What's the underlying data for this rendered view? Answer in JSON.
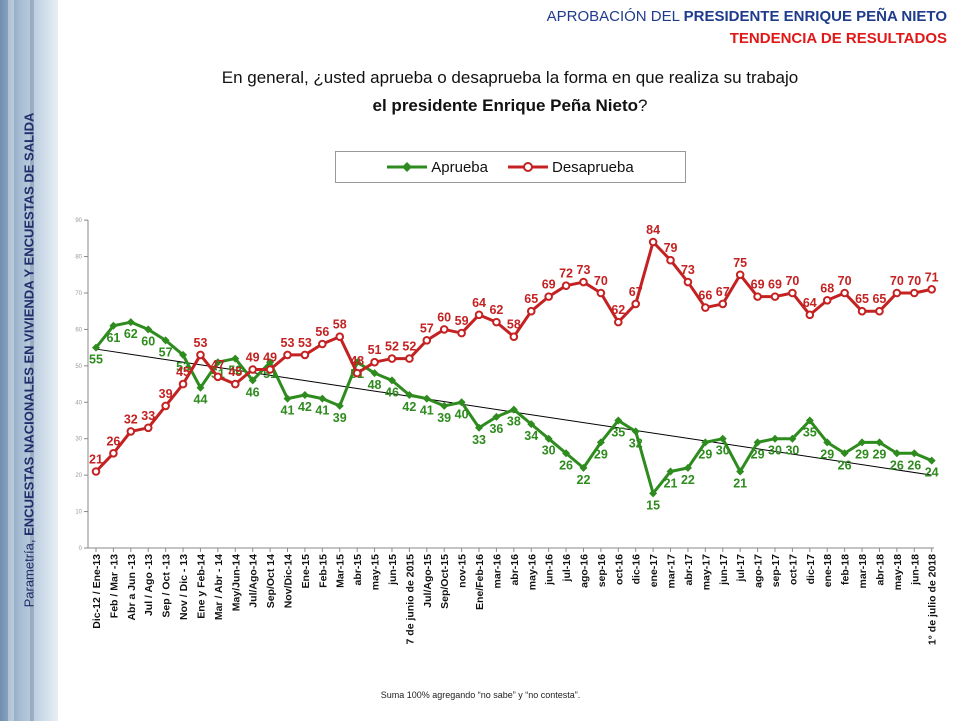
{
  "header": {
    "title_prefix": "APROBACIÓN DEL ",
    "title_bold": "PRESIDENTE ENRIQUE PEÑA NIETO",
    "subtitle": "TENDENCIA DE RESULTADOS"
  },
  "question": {
    "line1": "En general, ¿usted aprueba o desaprueba la forma en que realiza su trabajo",
    "line2_bold": "el presidente Enrique Peña Nieto",
    "line2_end": "?"
  },
  "side": {
    "prefix": "Parametría, ",
    "bold": "ENCUESTAS NACIONALES EN VIVIENDA Y ENCUESTAS DE SALIDA"
  },
  "footnote": "Suma 100%  agregando “no sabe” y “no contesta”.",
  "colors": {
    "aprueba": "#2e8b1e",
    "desaprueba": "#c42222",
    "trend": "#000000"
  },
  "chart_data": {
    "type": "line",
    "ylim": [
      0,
      90
    ],
    "yticks": [
      0,
      10,
      20,
      30,
      40,
      50,
      60,
      70,
      80,
      90
    ],
    "legend_position": "top-center",
    "grid": false,
    "trendline": {
      "series": "Aprueba"
    },
    "categories": [
      "Dic-12 / Ene-13",
      "Feb / Mar -13",
      "Abr a Jun -13",
      "Jul / Ago -13",
      "Sep / Oct -13",
      "Nov / Dic - 13",
      "Ene y Feb-14",
      "Mar / Abr - 14",
      "May/Jun-14",
      "Jul/Ago-14",
      "Sep/Oct 14",
      "Nov/Dic-14",
      "Ene-15",
      "Feb-15",
      "Mar-15",
      "abr-15",
      "may-15",
      "jun-15",
      "7 de junio de 2015",
      "Jul/Ago-15",
      "Sep/Oct-15",
      "nov-15",
      "Ene/Feb-16",
      "mar-16",
      "abr-16",
      "may-16",
      "jun-16",
      "jul-16",
      "ago-16",
      "sep-16",
      "oct-16",
      "dic-16",
      "ene-17",
      "mar-17",
      "abr-17",
      "may-17",
      "jun-17",
      "jul-17",
      "ago-17",
      "sep-17",
      "oct-17",
      "dic-17",
      "ene-18",
      "feb-18",
      "mar-18",
      "abr-18",
      "may-18",
      "jun-18",
      "1° de julio de 2018"
    ],
    "series": [
      {
        "name": "Aprueba",
        "values": [
          55,
          61,
          62,
          60,
          57,
          53,
          44,
          51,
          52,
          46,
          51,
          41,
          42,
          41,
          39,
          51,
          48,
          46,
          42,
          41,
          39,
          40,
          33,
          36,
          38,
          34,
          30,
          26,
          22,
          29,
          35,
          32,
          15,
          21,
          22,
          29,
          30,
          21,
          29,
          30,
          30,
          35,
          29,
          26,
          29,
          29,
          26,
          26,
          24
        ]
      },
      {
        "name": "Desaprueba",
        "values": [
          21,
          26,
          32,
          33,
          39,
          45,
          53,
          47,
          45,
          49,
          49,
          53,
          53,
          56,
          58,
          48,
          51,
          52,
          52,
          57,
          60,
          59,
          64,
          62,
          58,
          65,
          69,
          72,
          73,
          70,
          62,
          67,
          84,
          79,
          73,
          66,
          67,
          75,
          69,
          69,
          70,
          64,
          68,
          70,
          65,
          65,
          70,
          70,
          71
        ]
      }
    ]
  }
}
